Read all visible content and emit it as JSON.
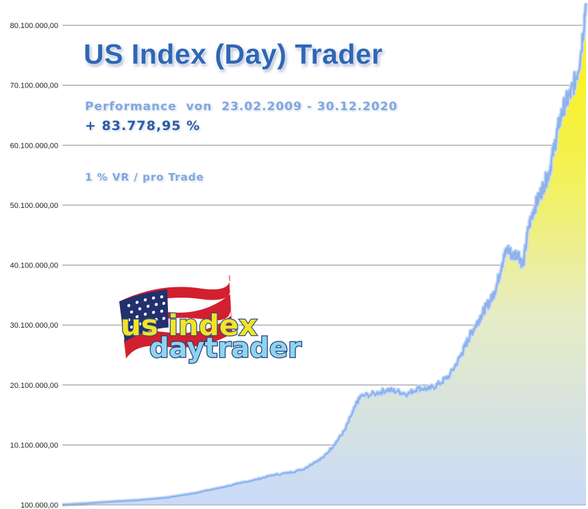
{
  "header": {
    "title": "US Index (Day) Trader",
    "performance_line": "Performance  von  23.02.2009 - 30.12.2020",
    "performance_value": "+ 83.778,95 %",
    "risk_line": "1 % VR / pro Trade"
  },
  "logo": {
    "word1": "us index",
    "word2": "daytrader",
    "colors": {
      "yellow": "#f4e326",
      "blue": "#8fd3f2",
      "red": "#d2202f",
      "navy": "#22306e"
    }
  },
  "colors": {
    "line": "#9bbcf0",
    "fill_top": "#fff200",
    "fill_bottom": "#c9daf8",
    "grid": "#8a8a8a"
  },
  "chart_data": {
    "type": "area",
    "title": "",
    "xlabel": "",
    "ylabel": "",
    "ylim": [
      100000,
      80100000
    ],
    "yticks": [
      100000,
      10100000,
      20100000,
      30100000,
      40100000,
      50100000,
      60100000,
      70100000,
      80100000
    ],
    "ytick_labels": [
      "100.000,00",
      "10.100.000,00",
      "20.100.000,00",
      "30.100.000,00",
      "40.100.000,00",
      "50.100.000,00",
      "60.100.000,00",
      "70.100.000,00",
      "80.100.000,00"
    ],
    "grid": true,
    "x_domain": [
      0,
      100
    ],
    "series": [
      {
        "x": [
          0,
          5,
          10,
          15,
          20,
          25,
          30,
          34,
          37,
          40,
          43,
          46,
          48,
          50,
          52,
          54,
          56,
          57,
          60,
          62,
          64,
          66,
          68,
          70,
          72,
          74,
          76,
          77,
          78,
          79,
          80,
          81,
          82,
          83,
          84,
          85,
          86,
          87,
          88,
          89,
          90,
          91,
          92,
          93,
          94,
          95,
          96,
          97,
          98,
          99,
          100
        ],
        "values": [
          100000,
          350000,
          650000,
          900000,
          1300000,
          2000000,
          2900000,
          3700000,
          4300000,
          5000000,
          5400000,
          6000000,
          7100000,
          8100000,
          10200000,
          12600000,
          16600000,
          18200000,
          18700000,
          19300000,
          19000000,
          18600000,
          19600000,
          19400000,
          20300000,
          21700000,
          24800000,
          26700000,
          28600000,
          30100000,
          31700000,
          33200000,
          34500000,
          36800000,
          40400000,
          42900000,
          41600000,
          42200000,
          40000000,
          46200000,
          49300000,
          51300000,
          53500000,
          55600000,
          60000000,
          64200000,
          67000000,
          68500000,
          71000000,
          75000000,
          83800000
        ]
      }
    ]
  }
}
